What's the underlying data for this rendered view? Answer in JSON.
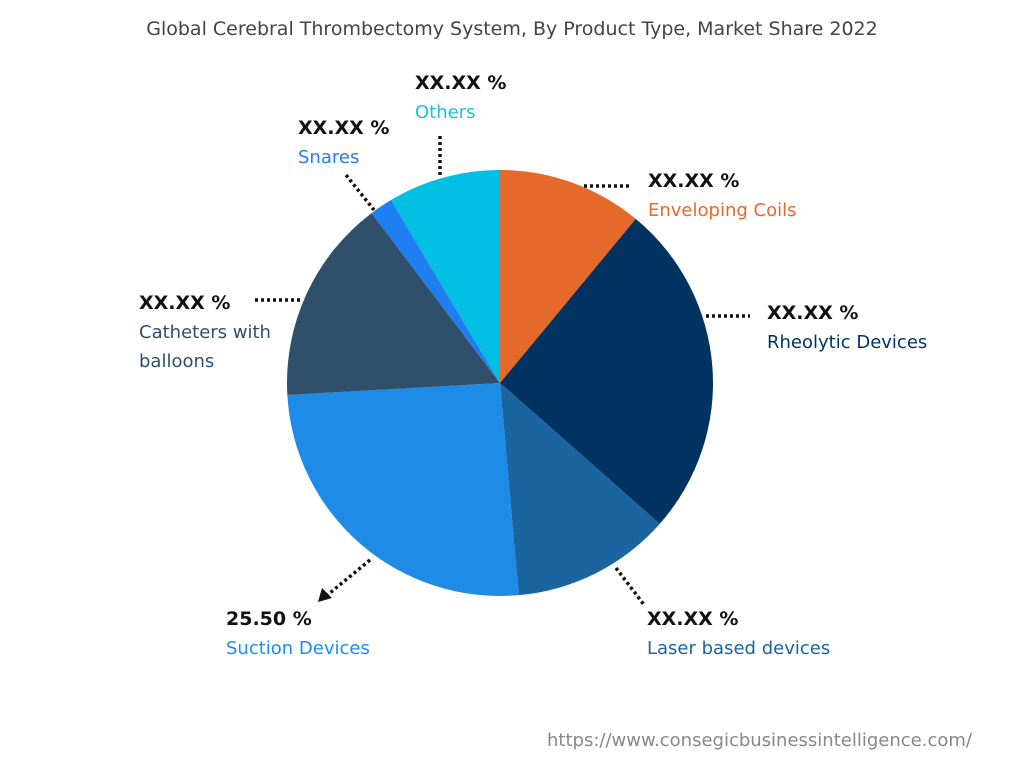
{
  "chart_data": {
    "type": "pie",
    "title": "Global Cerebral Thrombectomy System, By Product Type, Market Share 2022",
    "start": "top",
    "direction": "clockwise",
    "slices": [
      {
        "name": "Enveloping Coils",
        "value": 11.0,
        "label": "XX.XX %",
        "color": "#E5692A"
      },
      {
        "name": "Rheolytic Devices",
        "value": 25.5,
        "label": "XX.XX %",
        "color": "#003362"
      },
      {
        "name": "Laser based devices",
        "value": 12.1,
        "label": "XX.XX %",
        "color": "#1A64A0"
      },
      {
        "name": "Suction Devices",
        "value": 25.5,
        "label": "25.50 %",
        "color": "#1E8CE6"
      },
      {
        "name": "Catheters with balloons",
        "value": 15.6,
        "label": "XX.XX %",
        "color": "#2F4F6B"
      },
      {
        "name": "Snares",
        "value": 1.75,
        "label": "XX.XX %",
        "color": "#1E80F0"
      },
      {
        "name": "Others",
        "value": 8.55,
        "label": "XX.XX %",
        "color": "#00BFE2"
      }
    ],
    "legend": "none"
  },
  "source": "https://www.consegicbusinessintelligence.com/"
}
